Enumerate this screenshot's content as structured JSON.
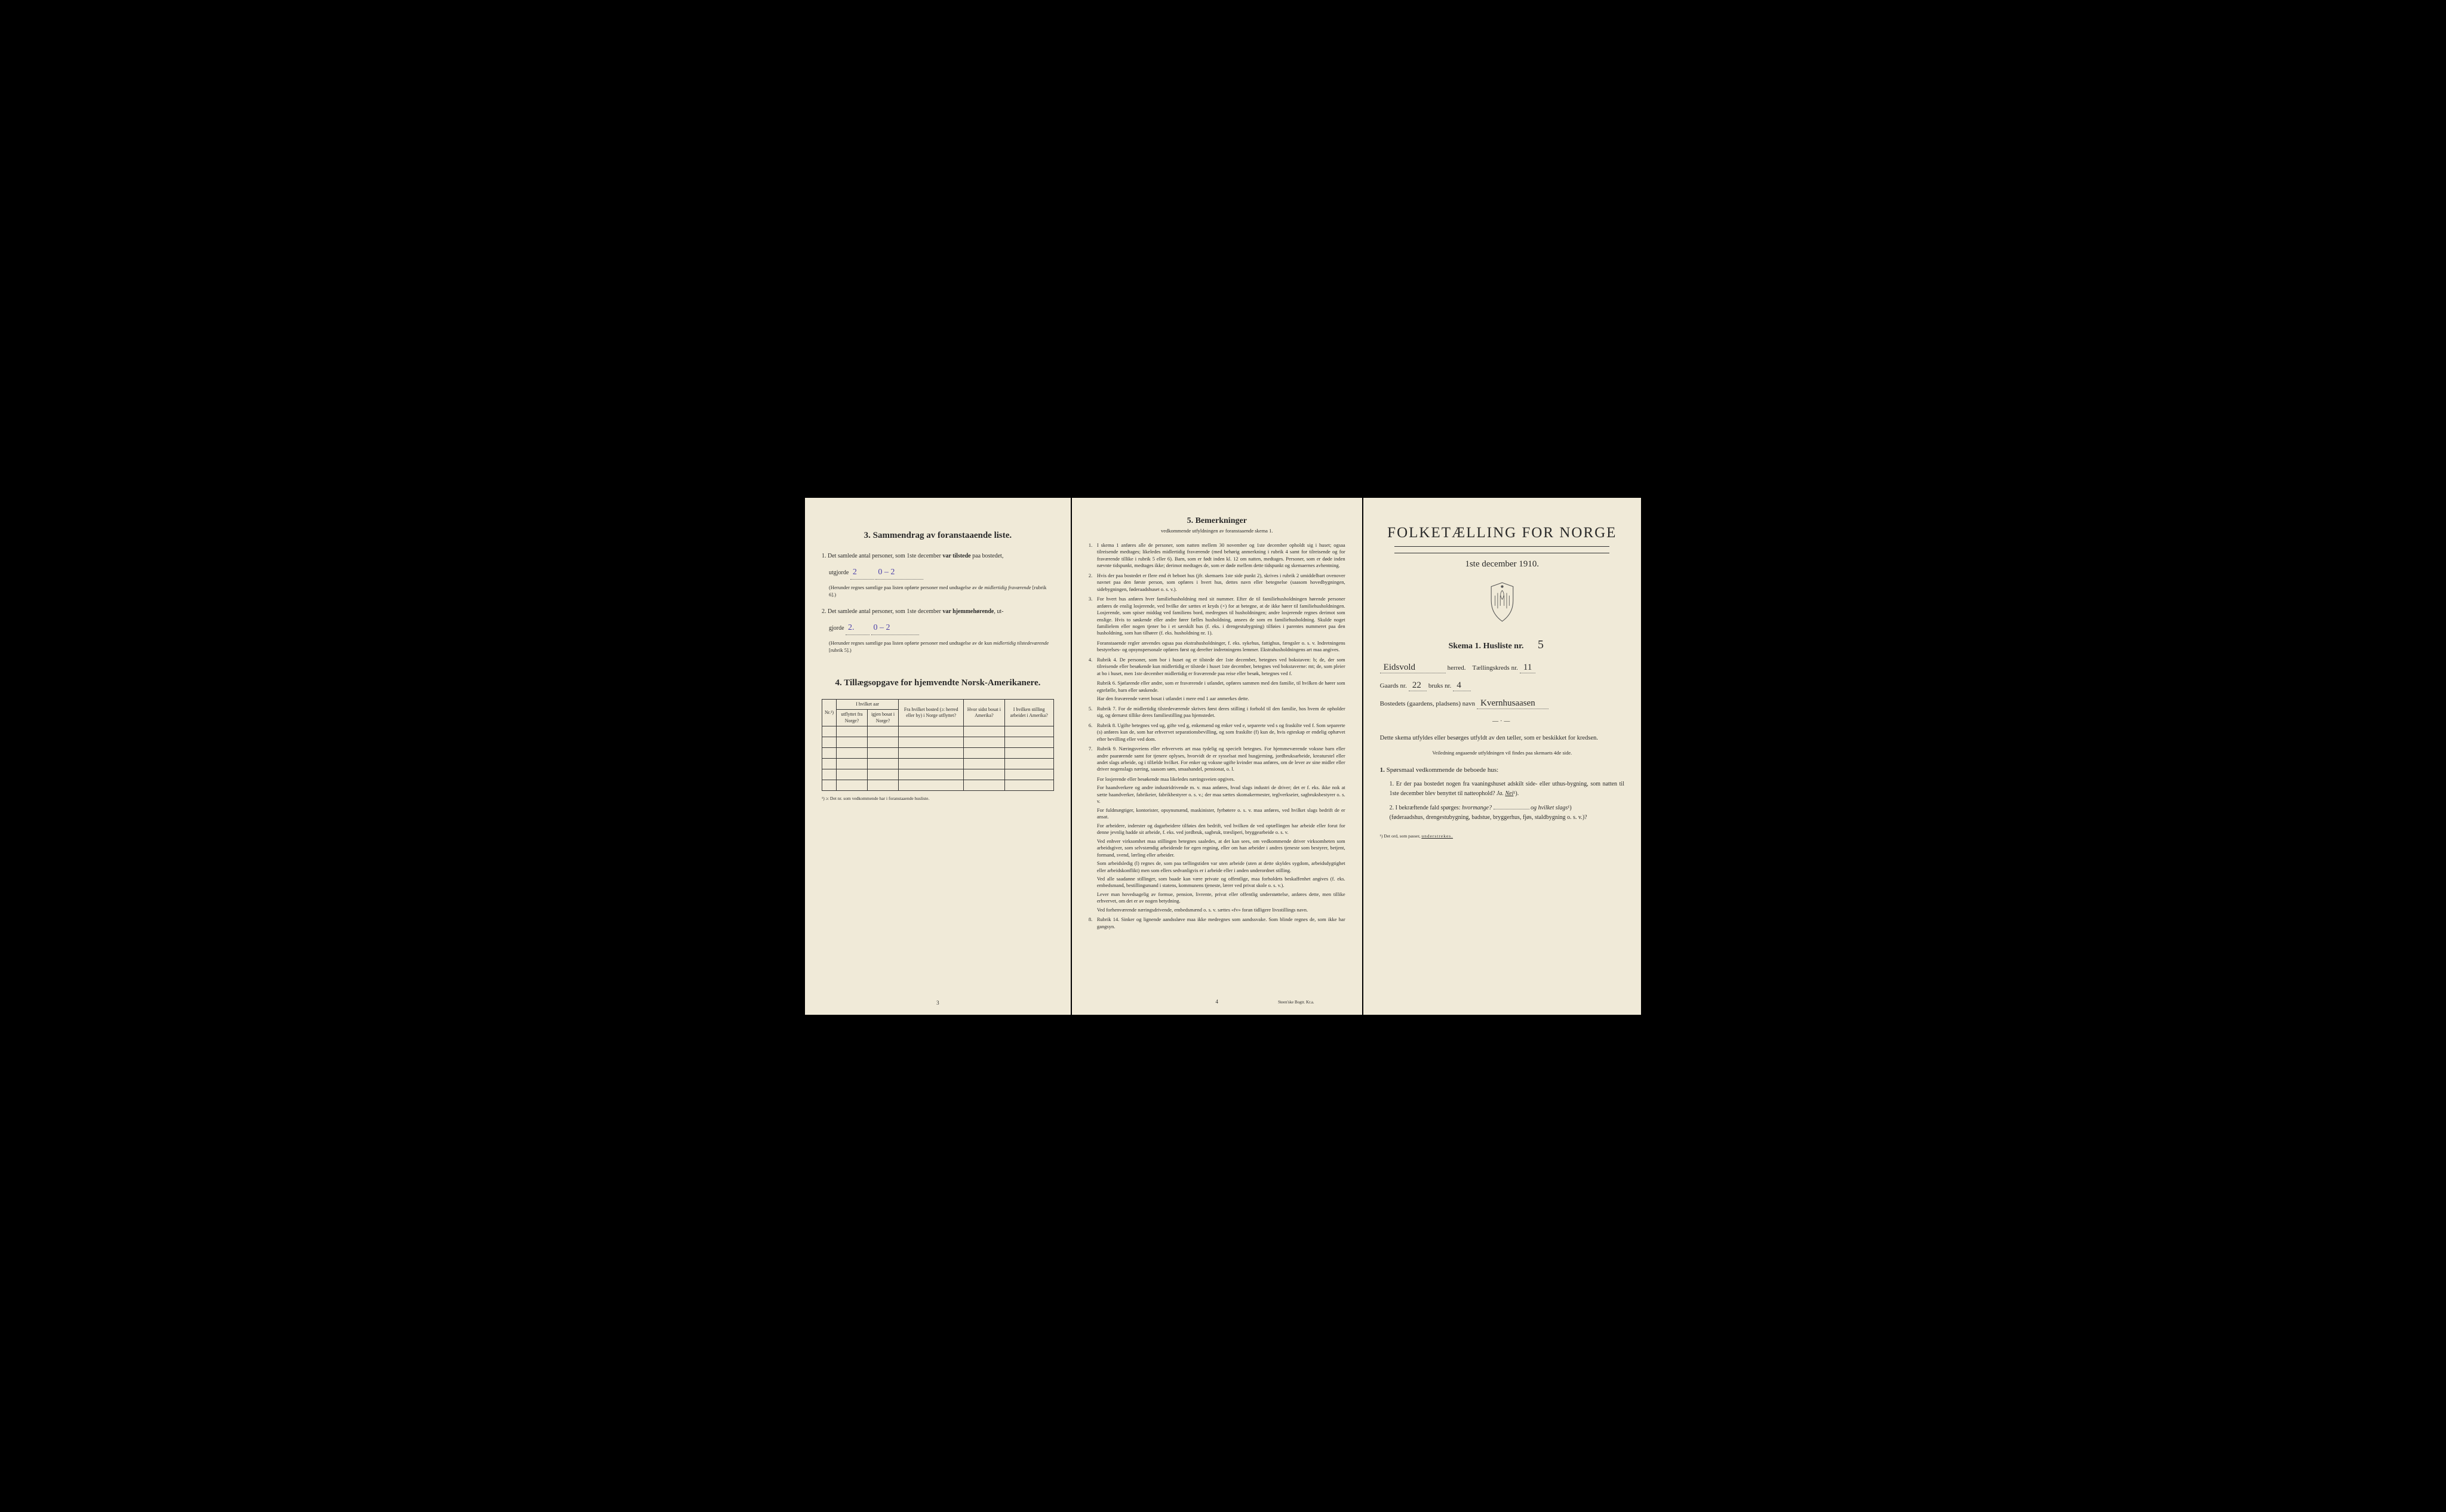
{
  "colors": {
    "paper": "#f0ead8",
    "ink": "#2a2a2a",
    "handwriting": "#4a3fa8",
    "background": "#000000"
  },
  "left": {
    "heading3_num": "3.",
    "heading3": "Sammendrag av foranstaaende liste.",
    "item1_num": "1.",
    "item1_a": "Det samlede antal personer, som 1ste december ",
    "item1_b": "var tilstede",
    "item1_c": " paa bostedet,",
    "item1_line2a": "utgjorde",
    "item1_hw1": "2",
    "item1_hw2": "0 – 2",
    "item1_note": "(Herunder regnes samtlige paa listen opførte personer med undtagelse av de ",
    "item1_note_i": "midlertidig fraværende",
    "item1_note_end": " [rubrik 6].)",
    "item2_num": "2.",
    "item2_a": "Det samlede antal personer, som 1ste december ",
    "item2_b": "var hjemmehørende",
    "item2_c": ", ut-",
    "item2_line2a": "gjorde",
    "item2_hw1": "2.",
    "item2_hw2": "0 – 2",
    "item2_note": "(Herunder regnes samtlige paa listen opførte personer med undtagelse av de kun ",
    "item2_note_i": "midlertidig tilstedeværende",
    "item2_note_end": " [rubrik 5].)",
    "heading4_num": "4.",
    "heading4": "Tillægsopgave for hjemvendte Norsk-Amerikanere.",
    "table": {
      "col1": "Nr.¹)",
      "col2_top": "I hvilket aar",
      "col2a": "utflyttet fra Norge?",
      "col2b": "igjen bosat i Norge?",
      "col3": "Fra hvilket bosted (ɔ: herred eller by) i Norge utflyttet?",
      "col4": "Hvor sidst bosat i Amerika?",
      "col5": "I hvilken stilling arbeidet i Amerika?",
      "empty_rows": 6
    },
    "footnote": "¹) ɔ: Det nr. som vedkommende har i foranstaaende husliste.",
    "page_num": "3"
  },
  "center": {
    "heading_num": "5.",
    "heading": "Bemerkninger",
    "subheading": "vedkommende utfyldningen av foranstaaende skema 1.",
    "items": [
      {
        "n": "1.",
        "t": "I skema 1 anføres alle de personer, som natten mellem 30 november og 1ste december opholdt sig i huset; ogsaa tilreisende medtages; likeledes midlertidig fraværende (med behørig anmerkning i rubrik 4 samt for tilreisende og for fraværende tillike i rubrik 5 eller 6). Barn, som er født inden kl. 12 om natten, medtages. Personer, som er døde inden nævnte tidspunkt, medtages ikke; derimot medtages de, som er døde mellem dette tidspunkt og skemaernes avhentning."
      },
      {
        "n": "2.",
        "t": "Hvis der paa bostedet er flere end ét beboet hus (jfr. skemaets 1ste side punkt 2), skrives i rubrik 2 umiddelbart ovenover navnet paa den første person, som opføres i hvert hus, dettes navn eller betegnelse (saasom hovedbygningen, sidebygningen, føderaadshuset o. s. v.)."
      },
      {
        "n": "3.",
        "t": "For hvert hus anføres hver familiehusholdning med sit nummer. Efter de til familiehusholdningen hørende personer anføres de enslig losjerende, ved hvilke der sættes et kryds (×) for at betegne, at de ikke hører til familiehusholdningen. Losjerende, som spiser middag ved familiens bord, medregnes til husholdningen; andre losjerende regnes derimot som enslige. Hvis to søskende eller andre fører fælles husholdning, ansees de som en familiehusholdning. Skulde noget familielem eller nogen tjener bo i et særskilt hus (f. eks. i drengestubygning) tilføies i parentes nummeret paa den husholdning, som han tilhører (f. eks. husholdning nr. 1)."
      },
      {
        "n": "",
        "t": "Foranstaaende regler anvendes ogsaa paa ekstrahusholdninger, f. eks. sykehus, fattighus, fængsler o. s. v. Indretningens bestyrelses- og opsynspersonale opføres først og derefter indretningens lemmer. Ekstrahusholdningens art maa angives."
      },
      {
        "n": "4.",
        "t": "Rubrik 4. De personer, som bor i huset og er tilstede der 1ste december, betegnes ved bokstaven: b; de, der som tilreisende eller besøkende kun midlertidig er tilstede i huset 1ste december, betegnes ved bokstaverne: mt; de, som pleier at bo i huset, men 1ste december midlertidig er fraværende paa reise eller besøk, betegnes ved f."
      },
      {
        "n": "",
        "t": "Rubrik 6. Sjøfarende eller andre, som er fraværende i utlandet, opføres sammen med den familie, til hvilken de hører som egtefælle, barn eller søskende."
      },
      {
        "n": "",
        "t": "Har den fraværende været bosat i utlandet i mere end 1 aar anmerkes dette."
      },
      {
        "n": "5.",
        "t": "Rubrik 7. For de midlertidig tilstedeværende skrives først deres stilling i forhold til den familie, hos hvem de opholder sig, og dernæst tillike deres familiestilling paa hjemstedet."
      },
      {
        "n": "6.",
        "t": "Rubrik 8. Ugifte betegnes ved ug, gifte ved g, enkemænd og enker ved e, separerte ved s og fraskilte ved f. Som separerte (s) anføres kun de, som har erhvervet separationsbevilling, og som fraskilte (f) kun de, hvis egteskap er endelig ophævet efter bevilling eller ved dom."
      },
      {
        "n": "7.",
        "t": "Rubrik 9. Næringsveiens eller erhvervets art maa tydelig og specielt betegnes. For hjemmeværende voksne barn eller andre paarørende samt for tjenere oplyses, hvorvidt de er sysselsat med husgjerning, jordbruksarbeide, kreaturstel eller andet slags arbeide, og i tilfælde hvilket. For enker og voksne ugifte kvinder maa anføres, om de lever av sine midler eller driver nogenslags næring, saasom søm, smaahandel, pensionat, o. l."
      },
      {
        "n": "",
        "t": "For losjerende eller besøkende maa likeledes næringsveien opgives."
      },
      {
        "n": "",
        "t": "For haandverkere og andre industridrivende m. v. maa anføres, hvad slags industri de driver; det er f. eks. ikke nok at sætte haandverker, fabrikeier, fabrikbestyrer o. s. v.; der maa sættes skomakermester, teglverkseier, sagbruksbestyrer o. s. v."
      },
      {
        "n": "",
        "t": "For fuldmægtiger, kontorister, opsynsmænd, maskinister, fyrbøtere o. s. v. maa anføres, ved hvilket slags bedrift de er ansat."
      },
      {
        "n": "",
        "t": "For arbeidere, inderster og dagarbeidere tilføies den bedrift, ved hvilken de ved optællingen har arbeide eller forut for denne jevnlig hadde sit arbeide, f. eks. ved jordbruk, sagbruk, træsliperi, bryggearbeide o. s. v."
      },
      {
        "n": "",
        "t": "Ved enhver virksomhet maa stillingen betegnes saaledes, at det kan sees, om vedkommende driver virksomheten som arbeidsgiver, som selvstændig arbeidende for egen regning, eller om han arbeider i andres tjeneste som bestyrer, betjent, formand, svend, lærling eller arbeider."
      },
      {
        "n": "",
        "t": "Som arbeidsledig (l) regnes de, som paa tællingstiden var uten arbeide (uten at dette skyldes sygdom, arbeidsdygtighet eller arbeidskonflikt) men som ellers sedvanligvis er i arbeide eller i anden underordnet stilling."
      },
      {
        "n": "",
        "t": "Ved alle saadanne stillinger, som baade kan være private og offentlige, maa forholdets beskaffenhet angives (f. eks. embedsmand, bestillingsmand i statens, kommunens tjeneste, lærer ved privat skole o. s. v.)."
      },
      {
        "n": "",
        "t": "Lever man hovedsagelig av formue, pension, livrente, privat eller offentlig understøttelse, anføres dette, men tillike erhvervet, om det er av nogen betydning."
      },
      {
        "n": "",
        "t": "Ved forhenværende næringsdrivende, embedsmænd o. s. v. sættes «fv» foran tidligere livsstillings navn."
      },
      {
        "n": "8.",
        "t": "Rubrik 14. Sinker og lignende aandssløve maa ikke medregnes som aandssvake. Som blinde regnes de, som ikke har gangsyn."
      }
    ],
    "page_num": "4",
    "printer": "Steen'ske Bogtr. Kr.a."
  },
  "right": {
    "title": "FOLKETÆLLING FOR NORGE",
    "date": "1ste december 1910.",
    "skema_a": "Skema 1.",
    "skema_b": "Husliste nr.",
    "skema_hw": "5",
    "herred_hw": "Eidsvold",
    "herred_label": "herred.",
    "kreds_label": "Tællingskreds nr.",
    "kreds_hw": "11",
    "gaard_label": "Gaards nr.",
    "gaard_hw": "22",
    "bruk_label": "bruks nr.",
    "bruk_hw": "4",
    "bosted_label": "Bostedets (gaardens, pladsens) navn",
    "bosted_hw": "Kvernhusaasen",
    "instruct": "Dette skema utfyldes eller besørges utfyldt av den tæller, som er beskikket for kredsen.",
    "instruct_small": "Veiledning angaaende utfyldningen vil findes paa skemaets 4de side.",
    "q_heading_num": "1.",
    "q_heading": "Spørsmaal vedkommende de beboede hus:",
    "q1_num": "1.",
    "q1": "Er der paa bostedet nogen fra vaaningshuset adskilt side- eller uthus-bygning, som natten til 1ste december blev benyttet til natteophold?",
    "q1_ja": "Ja.",
    "q1_nei": "Nei",
    "q1_sup": "¹).",
    "q2_num": "2.",
    "q2_a": "I bekræftende fald spørges: ",
    "q2_b": "hvormange?",
    "q2_c": "og ",
    "q2_d": "hvilket slags",
    "q2_sup": "¹)",
    "q2_paren": "(føderaadshus, drengestubygning, badstue, bryggerhus, fjøs, staldbygning o. s. v.)?",
    "footnote": "¹) Det ord, som passer, ",
    "footnote_u": "understrekes."
  }
}
